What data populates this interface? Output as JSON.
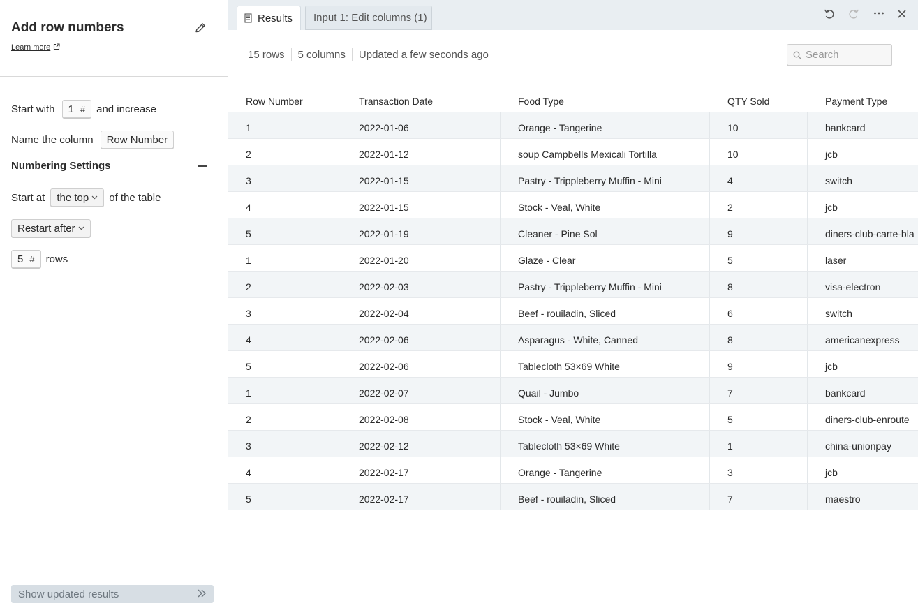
{
  "panel": {
    "title": "Add row numbers",
    "learn_more": "Learn more",
    "start_with_label": "Start with",
    "start_value": "1",
    "hash": "#",
    "and_increase": "and increase",
    "name_column_label": "Name the column",
    "column_name": "Row Number",
    "numbering_title": "Numbering Settings",
    "start_at_label": "Start at",
    "start_at_value": "the top",
    "of_table": "of the table",
    "restart_value": "Restart after",
    "restart_rows_value": "5",
    "rows_label": "rows",
    "show_button": "Show updated results"
  },
  "tabs": [
    {
      "label": "Results",
      "icon": "document-icon"
    },
    {
      "label": "Input 1: Edit columns (1)"
    }
  ],
  "toolbar": {
    "undo": "undo-icon",
    "redo": "redo-icon",
    "more": "more-icon",
    "close": "close-icon"
  },
  "meta": {
    "rows": "15 rows",
    "columns": "5 columns",
    "updated": "Updated a few seconds ago"
  },
  "search": {
    "placeholder": "Search"
  },
  "table": {
    "headers": [
      "Row Number",
      "Transaction Date",
      "Food Type",
      "QTY Sold",
      "Payment Type"
    ],
    "rows": [
      [
        "1",
        "2022-01-06",
        "Orange - Tangerine",
        "10",
        "bankcard"
      ],
      [
        "2",
        "2022-01-12",
        "soup Campbells Mexicali Tortilla",
        "10",
        "jcb"
      ],
      [
        "3",
        "2022-01-15",
        "Pastry - Trippleberry Muffin - Mini",
        "4",
        "switch"
      ],
      [
        "4",
        "2022-01-15",
        "Stock - Veal, White",
        "2",
        "jcb"
      ],
      [
        "5",
        "2022-01-19",
        "Cleaner - Pine Sol",
        "9",
        "diners-club-carte-bla"
      ],
      [
        "1",
        "2022-01-20",
        "Glaze - Clear",
        "5",
        "laser"
      ],
      [
        "2",
        "2022-02-03",
        "Pastry - Trippleberry Muffin - Mini",
        "8",
        "visa-electron"
      ],
      [
        "3",
        "2022-02-04",
        "Beef - rouiladin, Sliced",
        "6",
        "switch"
      ],
      [
        "4",
        "2022-02-06",
        "Asparagus - White, Canned",
        "8",
        "americanexpress"
      ],
      [
        "5",
        "2022-02-06",
        "Tablecloth 53×69 White",
        "9",
        "jcb"
      ],
      [
        "1",
        "2022-02-07",
        "Quail - Jumbo",
        "7",
        "bankcard"
      ],
      [
        "2",
        "2022-02-08",
        "Stock - Veal, White",
        "5",
        "diners-club-enroute"
      ],
      [
        "3",
        "2022-02-12",
        "Tablecloth 53×69 White",
        "1",
        "china-unionpay"
      ],
      [
        "4",
        "2022-02-17",
        "Orange - Tangerine",
        "3",
        "jcb"
      ],
      [
        "5",
        "2022-02-17",
        "Beef - rouiladin, Sliced",
        "7",
        "maestro"
      ]
    ]
  }
}
